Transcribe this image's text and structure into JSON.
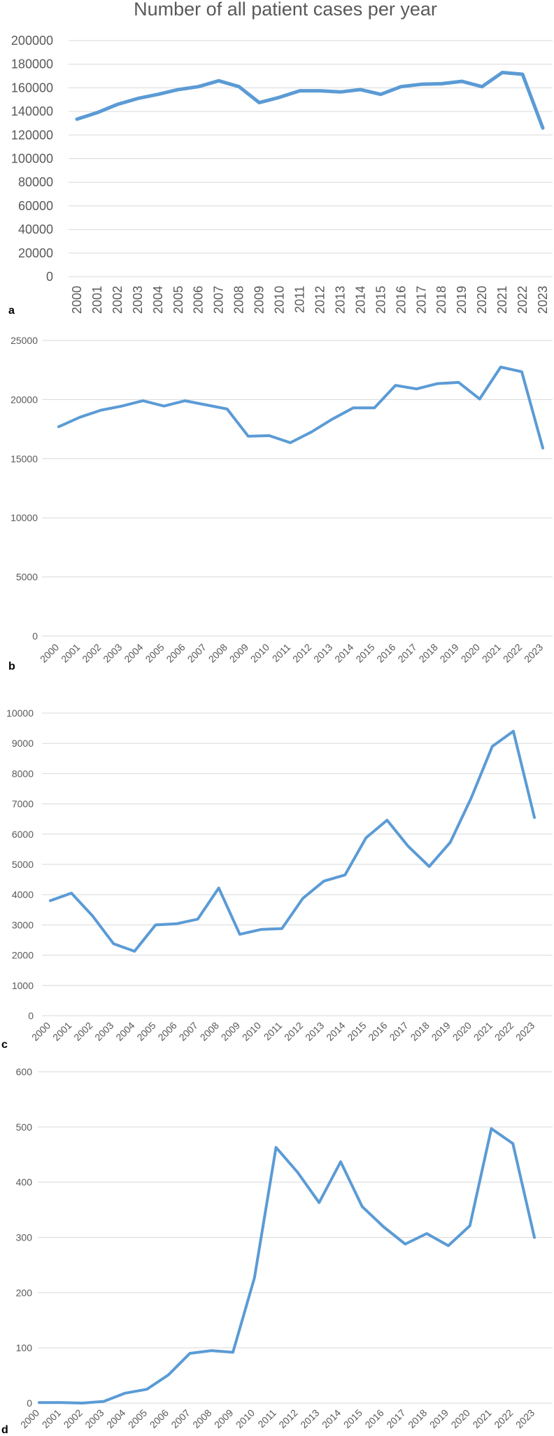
{
  "colors": {
    "line": "#5B9BD5",
    "grid": "#d9d9d9",
    "text": "#595959"
  },
  "chart_data": [
    {
      "panel": "a",
      "type": "line",
      "title": "Number of all patient cases per year",
      "xlabel": "",
      "ylabel": "",
      "categories": [
        "2000",
        "2001",
        "2002",
        "2003",
        "2004",
        "2005",
        "2006",
        "2007",
        "2008",
        "2009",
        "2010",
        "2011",
        "2012",
        "2013",
        "2014",
        "2015",
        "2016",
        "2017",
        "2018",
        "2019",
        "2020",
        "2021",
        "2022",
        "2023"
      ],
      "series": [
        {
          "values": [
            133500,
            139000,
            146000,
            151000,
            154500,
            158500,
            161000,
            166000,
            161000,
            147500,
            152000,
            157500,
            157500,
            156500,
            158500,
            154500,
            161000,
            163000,
            163500,
            165500,
            161000,
            173000,
            171500,
            126000
          ]
        }
      ],
      "ylim": [
        0,
        200000
      ],
      "yticks": [
        "0",
        "20000",
        "40000",
        "60000",
        "80000",
        "100000",
        "120000",
        "140000",
        "160000",
        "180000",
        "200000"
      ],
      "grid": true,
      "legend": "none"
    },
    {
      "panel": "b",
      "type": "line",
      "title": "",
      "xlabel": "",
      "ylabel": "",
      "categories": [
        "2000",
        "2001",
        "2002",
        "2003",
        "2004",
        "2005",
        "2006",
        "2007",
        "2008",
        "2009",
        "2010",
        "2011",
        "2012",
        "2013",
        "2014",
        "2015",
        "2016",
        "2017",
        "2018",
        "2019",
        "2020",
        "2021",
        "2022",
        "2023"
      ],
      "series": [
        {
          "values": [
            17700,
            18500,
            19100,
            19450,
            19900,
            19450,
            19900,
            19550,
            19200,
            16900,
            16950,
            16350,
            17250,
            18350,
            19300,
            19300,
            21200,
            20900,
            21350,
            21450,
            20050,
            22750,
            22350,
            15900
          ]
        }
      ],
      "ylim": [
        0,
        25000
      ],
      "yticks": [
        "0",
        "5000",
        "10000",
        "15000",
        "20000",
        "25000"
      ],
      "grid": true,
      "legend": "none"
    },
    {
      "panel": "c",
      "type": "line",
      "title": "",
      "xlabel": "",
      "ylabel": "",
      "categories": [
        "2000",
        "2001",
        "2002",
        "2003",
        "2004",
        "2005",
        "2006",
        "2007",
        "2008",
        "2009",
        "2010",
        "2011",
        "2012",
        "2013",
        "2014",
        "2015",
        "2016",
        "2017",
        "2018",
        "2019",
        "2020",
        "2021",
        "2022",
        "2023"
      ],
      "series": [
        {
          "values": [
            3800,
            4050,
            3300,
            2380,
            2130,
            3000,
            3040,
            3190,
            4220,
            2690,
            2850,
            2880,
            3880,
            4450,
            4650,
            5880,
            6460,
            5600,
            4930,
            5730,
            7200,
            8900,
            9400,
            6550
          ]
        }
      ],
      "ylim": [
        0,
        10000
      ],
      "yticks": [
        "0",
        "1000",
        "2000",
        "3000",
        "4000",
        "5000",
        "6000",
        "7000",
        "8000",
        "9000",
        "10000"
      ],
      "grid": true,
      "legend": "none"
    },
    {
      "panel": "d",
      "type": "line",
      "title": "",
      "xlabel": "",
      "ylabel": "",
      "categories": [
        "2000",
        "2001",
        "2002",
        "2003",
        "2004",
        "2005",
        "2006",
        "2007",
        "2008",
        "2009",
        "2010",
        "2011",
        "2012",
        "2013",
        "2014",
        "2015",
        "2016",
        "2017",
        "2018",
        "2019",
        "2020",
        "2021",
        "2022",
        "2023"
      ],
      "series": [
        {
          "values": [
            1,
            1,
            0,
            3,
            18,
            25,
            51,
            90,
            95,
            92,
            227,
            463,
            418,
            363,
            437,
            356,
            319,
            288,
            307,
            285,
            321,
            497,
            470,
            300
          ]
        }
      ],
      "ylim": [
        0,
        600
      ],
      "yticks": [
        "0",
        "100",
        "200",
        "300",
        "400",
        "500",
        "600"
      ],
      "grid": true,
      "legend": "none"
    }
  ]
}
